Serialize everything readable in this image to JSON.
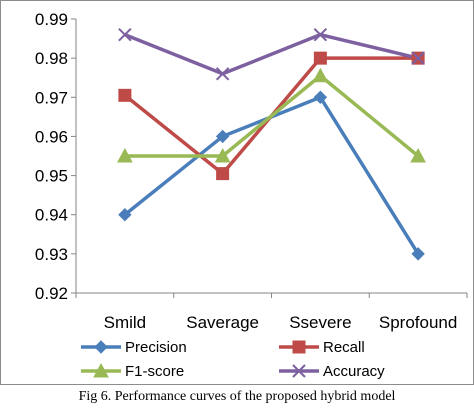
{
  "caption": "Fig 6. Performance curves of the proposed hybrid model",
  "chart_data": {
    "type": "line",
    "title": "",
    "xlabel": "",
    "ylabel": "",
    "categories": [
      "Smild",
      "Saverage",
      "Ssevere",
      "Sprofound"
    ],
    "ylim": [
      0.92,
      0.99
    ],
    "yticks": [
      "0.92",
      "0.93",
      "0.94",
      "0.95",
      "0.96",
      "0.97",
      "0.98",
      "0.99"
    ],
    "grid": false,
    "legend_position": "bottom",
    "series": [
      {
        "name": "Precision",
        "color": "#4a7ebb",
        "marker": "diamond",
        "values": [
          0.94,
          0.96,
          0.97,
          0.93
        ]
      },
      {
        "name": "Recall",
        "color": "#be4b48",
        "marker": "square",
        "values": [
          0.9705,
          0.9505,
          0.98,
          0.98
        ]
      },
      {
        "name": "F1-score",
        "color": "#98b954",
        "marker": "triangle",
        "values": [
          0.955,
          0.955,
          0.9755,
          0.955
        ]
      },
      {
        "name": "Accuracy",
        "color": "#7d60a0",
        "marker": "x",
        "values": [
          0.986,
          0.976,
          0.986,
          0.98
        ]
      }
    ]
  }
}
